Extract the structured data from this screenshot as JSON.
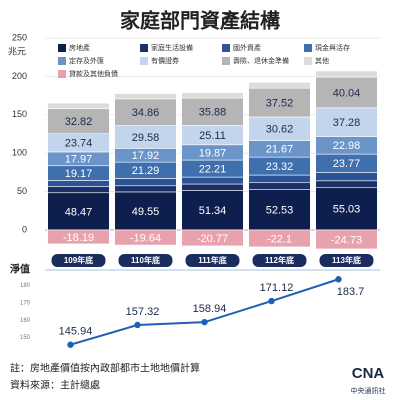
{
  "chart_data": [
    {
      "type": "bar",
      "title": "家庭部門資產結構",
      "y_label": "兆元",
      "categories": [
        "109年底",
        "110年底",
        "111年底",
        "112年底",
        "113年底"
      ],
      "series": [
        {
          "name": "房地產",
          "color": "#0f1f4d",
          "values": [
            48.47,
            49.55,
            51.34,
            52.53,
            55.03
          ]
        },
        {
          "name": "家庭生活設備",
          "color": "#1c2f66",
          "values": [
            8,
            8,
            8.5,
            9,
            9
          ]
        },
        {
          "name": "國外資產",
          "color": "#2b5396",
          "values": [
            8,
            9.5,
            9,
            10,
            11
          ]
        },
        {
          "name": "現金與活存",
          "color": "#3f70ad",
          "values": [
            19.17,
            21.29,
            22.21,
            23.32,
            23.77
          ]
        },
        {
          "name": "定存及外匯",
          "color": "#6b95c9",
          "values": [
            17.97,
            17.92,
            19.87,
            21.67,
            22.98
          ]
        },
        {
          "name": "有價證券",
          "color": "#c3d5ec",
          "values": [
            23.74,
            29.58,
            25.11,
            30.62,
            37.28
          ]
        },
        {
          "name": "壽險、退休金準備",
          "color": "#b5b5b5",
          "values": [
            32.82,
            34.86,
            35.88,
            37.52,
            40.04
          ]
        },
        {
          "name": "其他",
          "color": "#dcdcdc",
          "values": [
            7,
            7,
            7,
            7.5,
            8
          ]
        },
        {
          "name": "貸款及其他負債",
          "color": "#e7a2ad",
          "values": [
            -18.19,
            -19.64,
            -20.77,
            -22.1,
            -24.73
          ]
        }
      ],
      "ylim": [
        -30,
        250
      ],
      "yticks": [
        0,
        50,
        100,
        150,
        200,
        250
      ],
      "grid": true,
      "legend": "top"
    },
    {
      "type": "line",
      "title": "淨值",
      "color": "#1f5fb5",
      "values": [
        145.94,
        157.32,
        158.94,
        171.12,
        183.7
      ],
      "ylim": [
        140,
        185
      ],
      "yticks": [
        150,
        160,
        170,
        180
      ]
    }
  ],
  "notes": [
    "註：房地產價值按內政部都市土地地價計算",
    "資料來源：主計總處"
  ],
  "logo": {
    "text": "CNA",
    "subtitle": "中央通訊社"
  }
}
